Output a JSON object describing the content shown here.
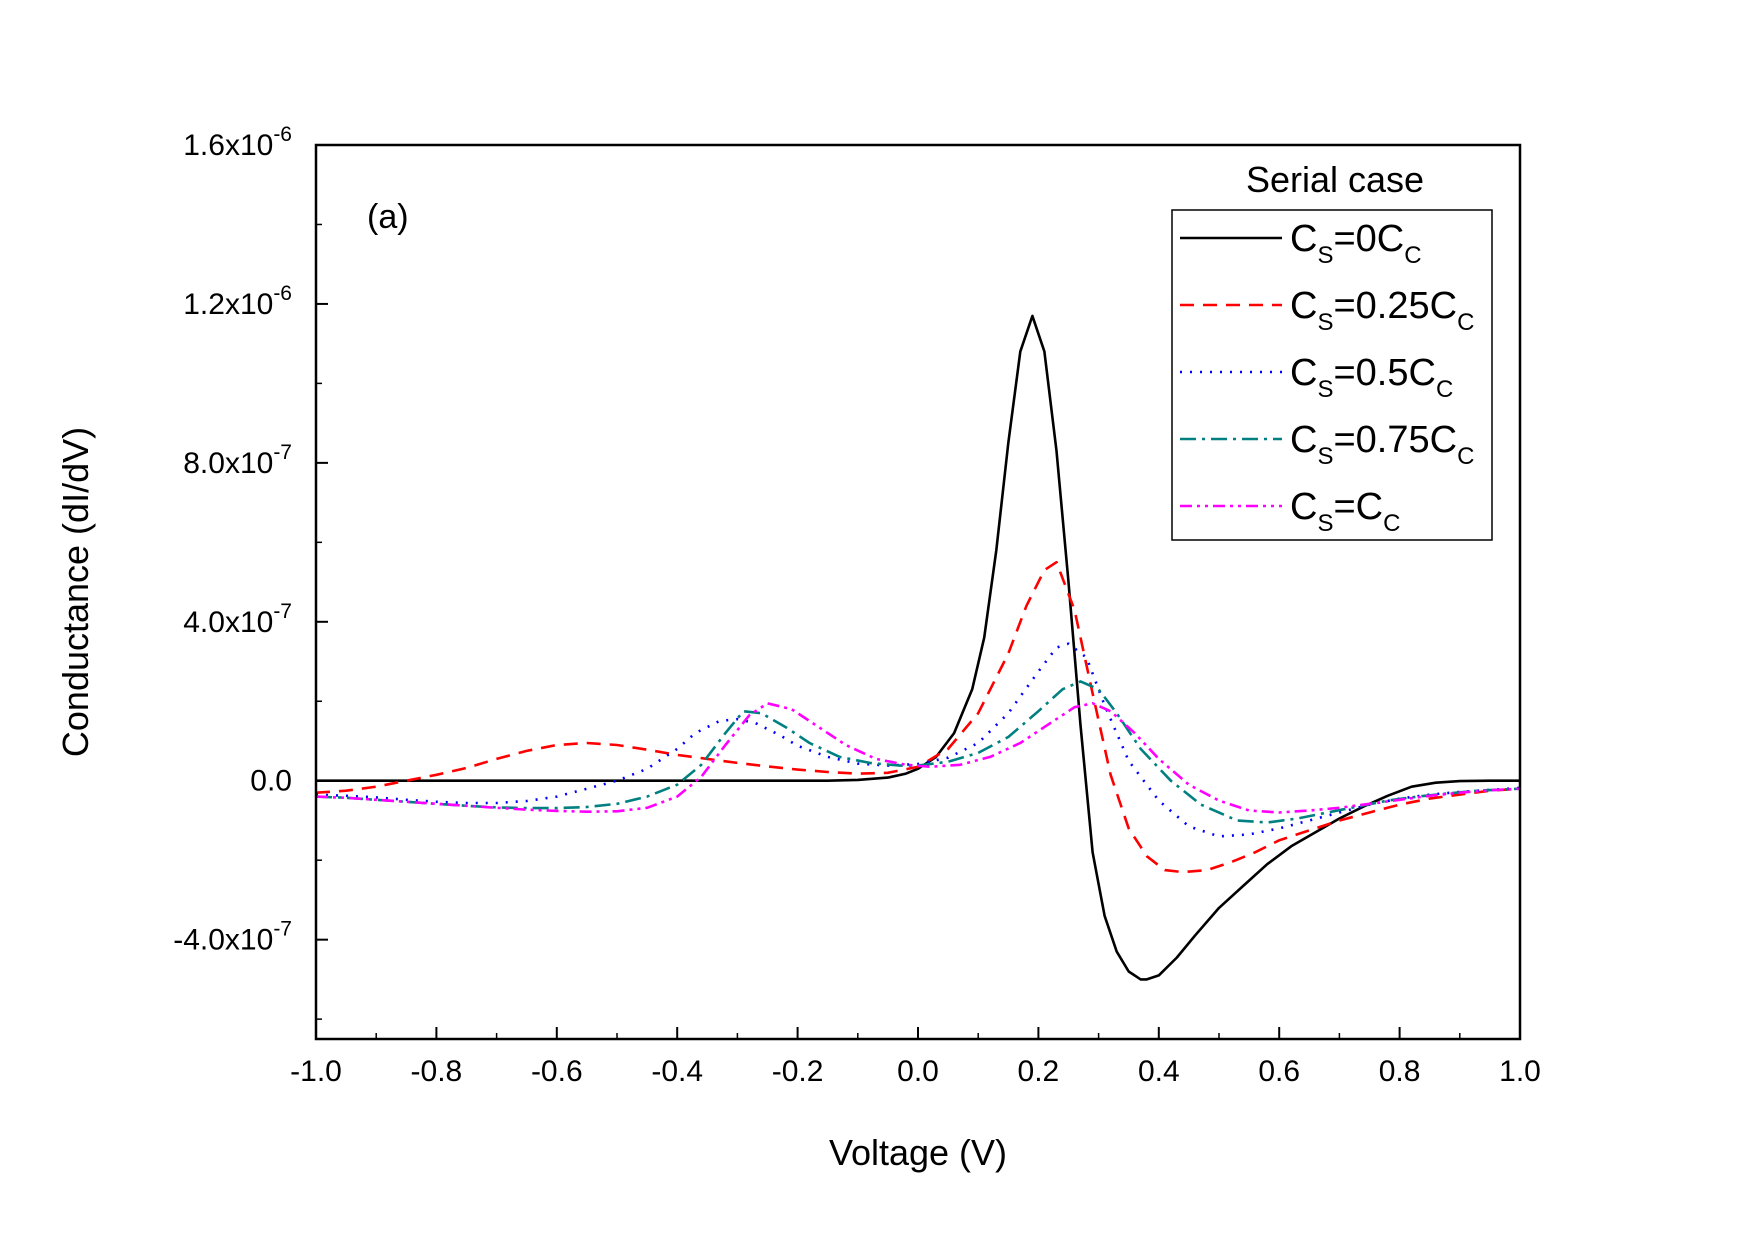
{
  "chart_data": {
    "type": "line",
    "title": "",
    "panel_label": "(a)",
    "xlabel": "Voltage (V)",
    "ylabel": "Conductance (dI/dV)",
    "xlim": [
      -1.0,
      1.0
    ],
    "ylim": [
      -6.5e-07,
      1.6e-06
    ],
    "x_ticks": [
      -1.0,
      -0.8,
      -0.6,
      -0.4,
      -0.2,
      0.0,
      0.2,
      0.4,
      0.6,
      0.8,
      1.0
    ],
    "x_tick_labels": [
      "-1.0",
      "-0.8",
      "-0.6",
      "-0.4",
      "-0.2",
      "0.0",
      "0.2",
      "0.4",
      "0.6",
      "0.8",
      "1.0"
    ],
    "y_ticks": [
      {
        "value": 1.6e-06,
        "mantissa": "1.6x10",
        "exp": "-6"
      },
      {
        "value": 1.2e-06,
        "mantissa": "1.2x10",
        "exp": "-6"
      },
      {
        "value": 8e-07,
        "mantissa": "8.0x10",
        "exp": "-7"
      },
      {
        "value": 4e-07,
        "mantissa": "4.0x10",
        "exp": "-7"
      },
      {
        "value": 0.0,
        "mantissa": "0.0",
        "exp": ""
      },
      {
        "value": -4e-07,
        "mantissa": "-4.0x10",
        "exp": "-7"
      }
    ],
    "legend_title": "Serial case",
    "legend_position": "top-right",
    "series": [
      {
        "name": "CS=0CC",
        "label": {
          "c1": "C",
          "s1": "S",
          "mid": "=0C",
          "s2": "C"
        },
        "color": "#000000",
        "dash": "",
        "x": [
          -1.0,
          -0.9,
          -0.8,
          -0.7,
          -0.6,
          -0.5,
          -0.4,
          -0.3,
          -0.2,
          -0.15,
          -0.1,
          -0.05,
          -0.02,
          0.0,
          0.03,
          0.06,
          0.09,
          0.11,
          0.13,
          0.15,
          0.17,
          0.19,
          0.21,
          0.23,
          0.25,
          0.27,
          0.29,
          0.31,
          0.33,
          0.35,
          0.37,
          0.38,
          0.4,
          0.43,
          0.46,
          0.5,
          0.54,
          0.58,
          0.62,
          0.66,
          0.7,
          0.74,
          0.78,
          0.82,
          0.86,
          0.9,
          0.95,
          1.0
        ],
        "y": [
          0,
          0,
          0,
          0,
          0,
          0,
          0,
          0,
          0,
          2e-10,
          2e-09,
          8e-09,
          1.8e-08,
          3e-08,
          6e-08,
          1.2e-07,
          2.3e-07,
          3.6e-07,
          5.8e-07,
          8.5e-07,
          1.08e-06,
          1.17e-06,
          1.08e-06,
          8.3e-07,
          5e-07,
          1.4e-07,
          -1.8e-07,
          -3.4e-07,
          -4.3e-07,
          -4.8e-07,
          -5e-07,
          -5e-07,
          -4.9e-07,
          -4.45e-07,
          -3.9e-07,
          -3.2e-07,
          -2.65e-07,
          -2.1e-07,
          -1.65e-07,
          -1.3e-07,
          -9.5e-08,
          -6.5e-08,
          -3.8e-08,
          -1.5e-08,
          -5e-09,
          -1e-09,
          0,
          0
        ]
      },
      {
        "name": "CS=0.25CC",
        "label": {
          "c1": "C",
          "s1": "S",
          "mid": "=0.25C",
          "s2": "C"
        },
        "color": "#ff0000",
        "dash": "14,9",
        "x": [
          -1.0,
          -0.95,
          -0.9,
          -0.85,
          -0.8,
          -0.75,
          -0.7,
          -0.65,
          -0.6,
          -0.55,
          -0.5,
          -0.45,
          -0.4,
          -0.35,
          -0.3,
          -0.25,
          -0.2,
          -0.15,
          -0.1,
          -0.05,
          0.0,
          0.05,
          0.1,
          0.15,
          0.18,
          0.21,
          0.23,
          0.26,
          0.29,
          0.32,
          0.35,
          0.38,
          0.41,
          0.44,
          0.48,
          0.52,
          0.56,
          0.6,
          0.65,
          0.7,
          0.75,
          0.8,
          0.85,
          0.9,
          0.95,
          1.0
        ],
        "y": [
          -3e-08,
          -2.5e-08,
          -1.5e-08,
          0,
          1.5e-08,
          3.2e-08,
          5.5e-08,
          7.5e-08,
          9e-08,
          9.5e-08,
          9e-08,
          7.8e-08,
          6.5e-08,
          5.5e-08,
          4.5e-08,
          3.6e-08,
          2.8e-08,
          2.2e-08,
          1.8e-08,
          2e-08,
          3.5e-08,
          8e-08,
          1.7e-07,
          3.2e-07,
          4.4e-07,
          5.3e-07,
          5.5e-07,
          4.3e-07,
          2.2e-07,
          1.5e-08,
          -1.2e-07,
          -1.9e-07,
          -2.25e-07,
          -2.3e-07,
          -2.25e-07,
          -2.05e-07,
          -1.8e-07,
          -1.5e-07,
          -1.25e-07,
          -1e-07,
          -8e-08,
          -6e-08,
          -4.5e-08,
          -3.5e-08,
          -2.5e-08,
          -2e-08
        ]
      },
      {
        "name": "CS=0.5CC",
        "label": {
          "c1": "C",
          "s1": "S",
          "mid": "=0.5C",
          "s2": "C"
        },
        "color": "#0000ff",
        "dash": "2,8",
        "x": [
          -1.0,
          -0.95,
          -0.9,
          -0.85,
          -0.8,
          -0.75,
          -0.7,
          -0.65,
          -0.6,
          -0.55,
          -0.5,
          -0.45,
          -0.4,
          -0.37,
          -0.33,
          -0.3,
          -0.27,
          -0.23,
          -0.2,
          -0.15,
          -0.1,
          -0.05,
          0.0,
          0.05,
          0.1,
          0.15,
          0.2,
          0.23,
          0.25,
          0.28,
          0.31,
          0.35,
          0.4,
          0.45,
          0.5,
          0.55,
          0.6,
          0.65,
          0.7,
          0.75,
          0.8,
          0.85,
          0.9,
          0.95,
          1.0
        ],
        "y": [
          -3.5e-08,
          -3.8e-08,
          -4.2e-08,
          -4.8e-08,
          -5.3e-08,
          -5.6e-08,
          -5.6e-08,
          -5.1e-08,
          -4e-08,
          -2e-08,
          0,
          3e-08,
          8e-08,
          1.2e-07,
          1.5e-07,
          1.55e-07,
          1.45e-07,
          1.15e-07,
          8.8e-08,
          6e-08,
          4.3e-08,
          3.8e-08,
          4.2e-08,
          5.8e-08,
          9.5e-08,
          1.7e-07,
          2.75e-07,
          3.35e-07,
          3.45e-07,
          3.1e-07,
          1.9e-07,
          5e-08,
          -5e-08,
          -1.15e-07,
          -1.4e-07,
          -1.35e-07,
          -1.2e-07,
          -1e-07,
          -8e-08,
          -6e-08,
          -4.5e-08,
          -3.5e-08,
          -2.8e-08,
          -2.3e-08,
          -1.8e-08
        ]
      },
      {
        "name": "CS=0.75CC",
        "label": {
          "c1": "C",
          "s1": "S",
          "mid": "=0.75C",
          "s2": "C"
        },
        "color": "#008080",
        "dash": "16,6,3,6",
        "x": [
          -1.0,
          -0.95,
          -0.9,
          -0.85,
          -0.8,
          -0.75,
          -0.7,
          -0.65,
          -0.6,
          -0.55,
          -0.5,
          -0.45,
          -0.4,
          -0.36,
          -0.32,
          -0.29,
          -0.26,
          -0.22,
          -0.18,
          -0.13,
          -0.08,
          -0.03,
          0.0,
          0.05,
          0.1,
          0.15,
          0.2,
          0.24,
          0.27,
          0.3,
          0.33,
          0.37,
          0.42,
          0.47,
          0.53,
          0.58,
          0.63,
          0.68,
          0.73,
          0.78,
          0.83,
          0.88,
          0.93,
          1.0
        ],
        "y": [
          -4e-08,
          -4.3e-08,
          -4.8e-08,
          -5.3e-08,
          -5.8e-08,
          -6.3e-08,
          -6.7e-08,
          -6.9e-08,
          -6.9e-08,
          -6.6e-08,
          -5.8e-08,
          -4e-08,
          -1e-08,
          4e-08,
          1.2e-07,
          1.75e-07,
          1.7e-07,
          1.35e-07,
          9.5e-08,
          6e-08,
          4.5e-08,
          3.8e-08,
          3.8e-08,
          4.8e-08,
          7e-08,
          1.1e-07,
          1.75e-07,
          2.3e-07,
          2.5e-07,
          2.3e-07,
          1.7e-07,
          8e-08,
          0,
          -6e-08,
          -1e-07,
          -1.05e-07,
          -9.5e-08,
          -8e-08,
          -6.5e-08,
          -5e-08,
          -4e-08,
          -3.2e-08,
          -2.5e-08,
          -2e-08
        ]
      },
      {
        "name": "CS=CC",
        "label": {
          "c1": "C",
          "s1": "S",
          "mid": "=C",
          "s2": "C"
        },
        "color": "#ff00ff",
        "dash": "12,5,3,5,3,5",
        "x": [
          -1.0,
          -0.95,
          -0.9,
          -0.85,
          -0.8,
          -0.75,
          -0.7,
          -0.65,
          -0.6,
          -0.55,
          -0.5,
          -0.45,
          -0.4,
          -0.36,
          -0.32,
          -0.28,
          -0.25,
          -0.21,
          -0.17,
          -0.12,
          -0.07,
          -0.02,
          0.02,
          0.07,
          0.12,
          0.17,
          0.22,
          0.26,
          0.29,
          0.32,
          0.36,
          0.4,
          0.45,
          0.5,
          0.55,
          0.6,
          0.65,
          0.7,
          0.75,
          0.8,
          0.85,
          0.9,
          0.95,
          1.0
        ],
        "y": [
          -4e-08,
          -4.3e-08,
          -4.8e-08,
          -5.3e-08,
          -5.8e-08,
          -6.3e-08,
          -6.8e-08,
          -7.3e-08,
          -7.6e-08,
          -7.8e-08,
          -7.7e-08,
          -6.8e-08,
          -4e-08,
          1e-08,
          9e-08,
          1.65e-07,
          1.95e-07,
          1.8e-07,
          1.4e-07,
          9e-08,
          5.5e-08,
          4e-08,
          3.5e-08,
          4e-08,
          6e-08,
          9.5e-08,
          1.45e-07,
          1.85e-07,
          1.95e-07,
          1.75e-07,
          1.2e-07,
          5.5e-08,
          -1e-08,
          -5e-08,
          -7.5e-08,
          -8e-08,
          -7.5e-08,
          -6.8e-08,
          -5.8e-08,
          -4.8e-08,
          -3.8e-08,
          -3e-08,
          -2.4e-08,
          -2e-08
        ]
      }
    ]
  }
}
